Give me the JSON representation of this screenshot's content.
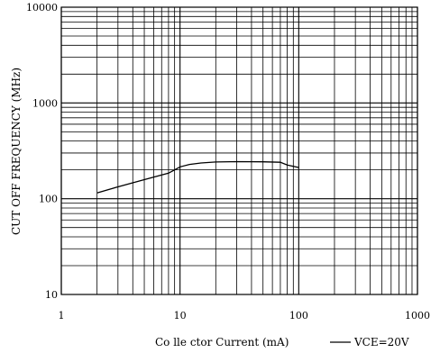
{
  "chart_data": {
    "type": "line",
    "x_scale": "log",
    "y_scale": "log",
    "xlim": [
      1,
      1000
    ],
    "ylim": [
      10,
      10000
    ],
    "grid": true,
    "legend_position": "bottom-right",
    "xlabel": "Co lle ctor Current (mA)",
    "ylabel": "CUT OFF FREQUENCY (MHz)",
    "x_ticks": [
      {
        "value": 1,
        "label": "1"
      },
      {
        "value": 10,
        "label": "10"
      },
      {
        "value": 100,
        "label": "100"
      },
      {
        "value": 1000,
        "label": "1000"
      }
    ],
    "y_ticks": [
      {
        "value": 10,
        "label": "10"
      },
      {
        "value": 100,
        "label": "100"
      },
      {
        "value": 1000,
        "label": "1000"
      },
      {
        "value": 10000,
        "label": "10000"
      }
    ],
    "series": [
      {
        "name": "VCE=20V",
        "color": "#000000",
        "x": [
          2,
          3,
          5,
          8,
          9,
          10,
          12,
          15,
          20,
          30,
          50,
          70,
          80,
          100
        ],
        "y": [
          115,
          133,
          158,
          185,
          200,
          215,
          228,
          236,
          242,
          244,
          243,
          240,
          225,
          212
        ]
      }
    ]
  }
}
